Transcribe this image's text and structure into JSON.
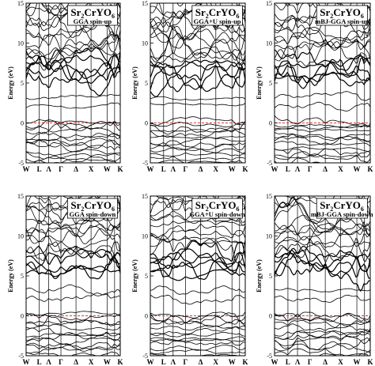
{
  "chart_data": [
    {
      "type": "line",
      "panel": "gga-up",
      "compound": {
        "base": "Sr",
        "sub1": "2",
        "mid": "CrYO",
        "sub2": "6"
      },
      "method": "GGA spin-up",
      "ylabel": "Energy (eV)",
      "ylim": [
        -5,
        15
      ],
      "yticks": [
        "-5",
        "0",
        "5",
        "10",
        "15"
      ],
      "xticks": [
        "W",
        "L",
        "Λ",
        "Γ",
        "Δ",
        "X",
        "W",
        "K"
      ],
      "xtick_pos": [
        0,
        0.14,
        0.24,
        0.37,
        0.53,
        0.69,
        0.86,
        0.94
      ],
      "fermi_level": 0,
      "fermi_color": "#e23b3b",
      "line_color": "#000000",
      "seed": 11
    },
    {
      "type": "line",
      "panel": "ggau-up",
      "compound": {
        "base": "Sr",
        "sub1": "2",
        "mid": "CrYO",
        "sub2": "6"
      },
      "method": "GGA+U spin-up",
      "ylabel": "Energy (eV)",
      "ylim": [
        -5,
        15
      ],
      "yticks": [
        "-5",
        "0",
        "5",
        "10",
        "15"
      ],
      "xticks": [
        "W",
        "L",
        "Λ",
        "Γ",
        "Δ",
        "X",
        "W",
        "K"
      ],
      "xtick_pos": [
        0,
        0.14,
        0.24,
        0.37,
        0.53,
        0.69,
        0.86,
        0.94
      ],
      "fermi_level": 0,
      "fermi_color": "#e23b3b",
      "line_color": "#000000",
      "seed": 23
    },
    {
      "type": "line",
      "panel": "mbj-up",
      "compound": {
        "base": "Sr",
        "sub1": "2",
        "mid": "CrYO",
        "sub2": "6"
      },
      "method": "mBJ-GGA spin-up",
      "ylabel": "Energy (eV)",
      "ylim": [
        -5,
        15
      ],
      "yticks": [
        "-5",
        "0",
        "5",
        "10",
        "15"
      ],
      "xticks": [
        "W",
        "L",
        "Λ",
        "Γ",
        "Δ",
        "X",
        "W",
        "K"
      ],
      "xtick_pos": [
        0,
        0.14,
        0.24,
        0.37,
        0.53,
        0.69,
        0.86,
        0.94
      ],
      "fermi_level": 0,
      "fermi_color": "#e23b3b",
      "line_color": "#000000",
      "seed": 37
    },
    {
      "type": "line",
      "panel": "gga-down",
      "compound": {
        "base": "Sr",
        "sub1": "2",
        "mid": "CrYO",
        "sub2": "6"
      },
      "method": "GGA spin-down",
      "ylabel": "Energy (eV)",
      "ylim": [
        -5,
        15
      ],
      "yticks": [
        "-5",
        "0",
        "5",
        "10",
        "15"
      ],
      "xticks": [
        "W",
        "L",
        "Λ",
        "Γ",
        "Δ",
        "X",
        "W",
        "K"
      ],
      "xtick_pos": [
        0,
        0.14,
        0.24,
        0.37,
        0.53,
        0.69,
        0.86,
        0.94
      ],
      "fermi_level": 0,
      "fermi_color": "#e23b3b",
      "line_color": "#000000",
      "seed": 41
    },
    {
      "type": "line",
      "panel": "ggau-down",
      "compound": {
        "base": "Sr",
        "sub1": "2",
        "mid": "CrYO",
        "sub2": "6"
      },
      "method": "GGA+U spin-down",
      "ylabel": "Energy (eV)",
      "ylim": [
        -5,
        15
      ],
      "yticks": [
        "-5",
        "0",
        "5",
        "10",
        "15"
      ],
      "xticks": [
        "W",
        "L",
        "Λ",
        "Γ",
        "Δ",
        "X",
        "W",
        "K"
      ],
      "xtick_pos": [
        0,
        0.14,
        0.24,
        0.37,
        0.53,
        0.69,
        0.86,
        0.94
      ],
      "fermi_level": 0,
      "fermi_color": "#e23b3b",
      "line_color": "#000000",
      "seed": 53
    },
    {
      "type": "line",
      "panel": "mbj-down",
      "compound": {
        "base": "Sr",
        "sub1": "2",
        "mid": "CrYO",
        "sub2": "6"
      },
      "method": "mBJ-GGA spin-down",
      "ylabel": "Energy (eV)",
      "ylim": [
        -5,
        15
      ],
      "yticks": [
        "-5",
        "0",
        "5",
        "10",
        "15"
      ],
      "xticks": [
        "W",
        "L",
        "Λ",
        "Γ",
        "Δ",
        "X",
        "W",
        "K"
      ],
      "xtick_pos": [
        0,
        0.14,
        0.24,
        0.37,
        0.53,
        0.69,
        0.86,
        0.94
      ],
      "fermi_level": 0,
      "fermi_color": "#e23b3b",
      "line_color": "#000000",
      "seed": 67
    }
  ]
}
